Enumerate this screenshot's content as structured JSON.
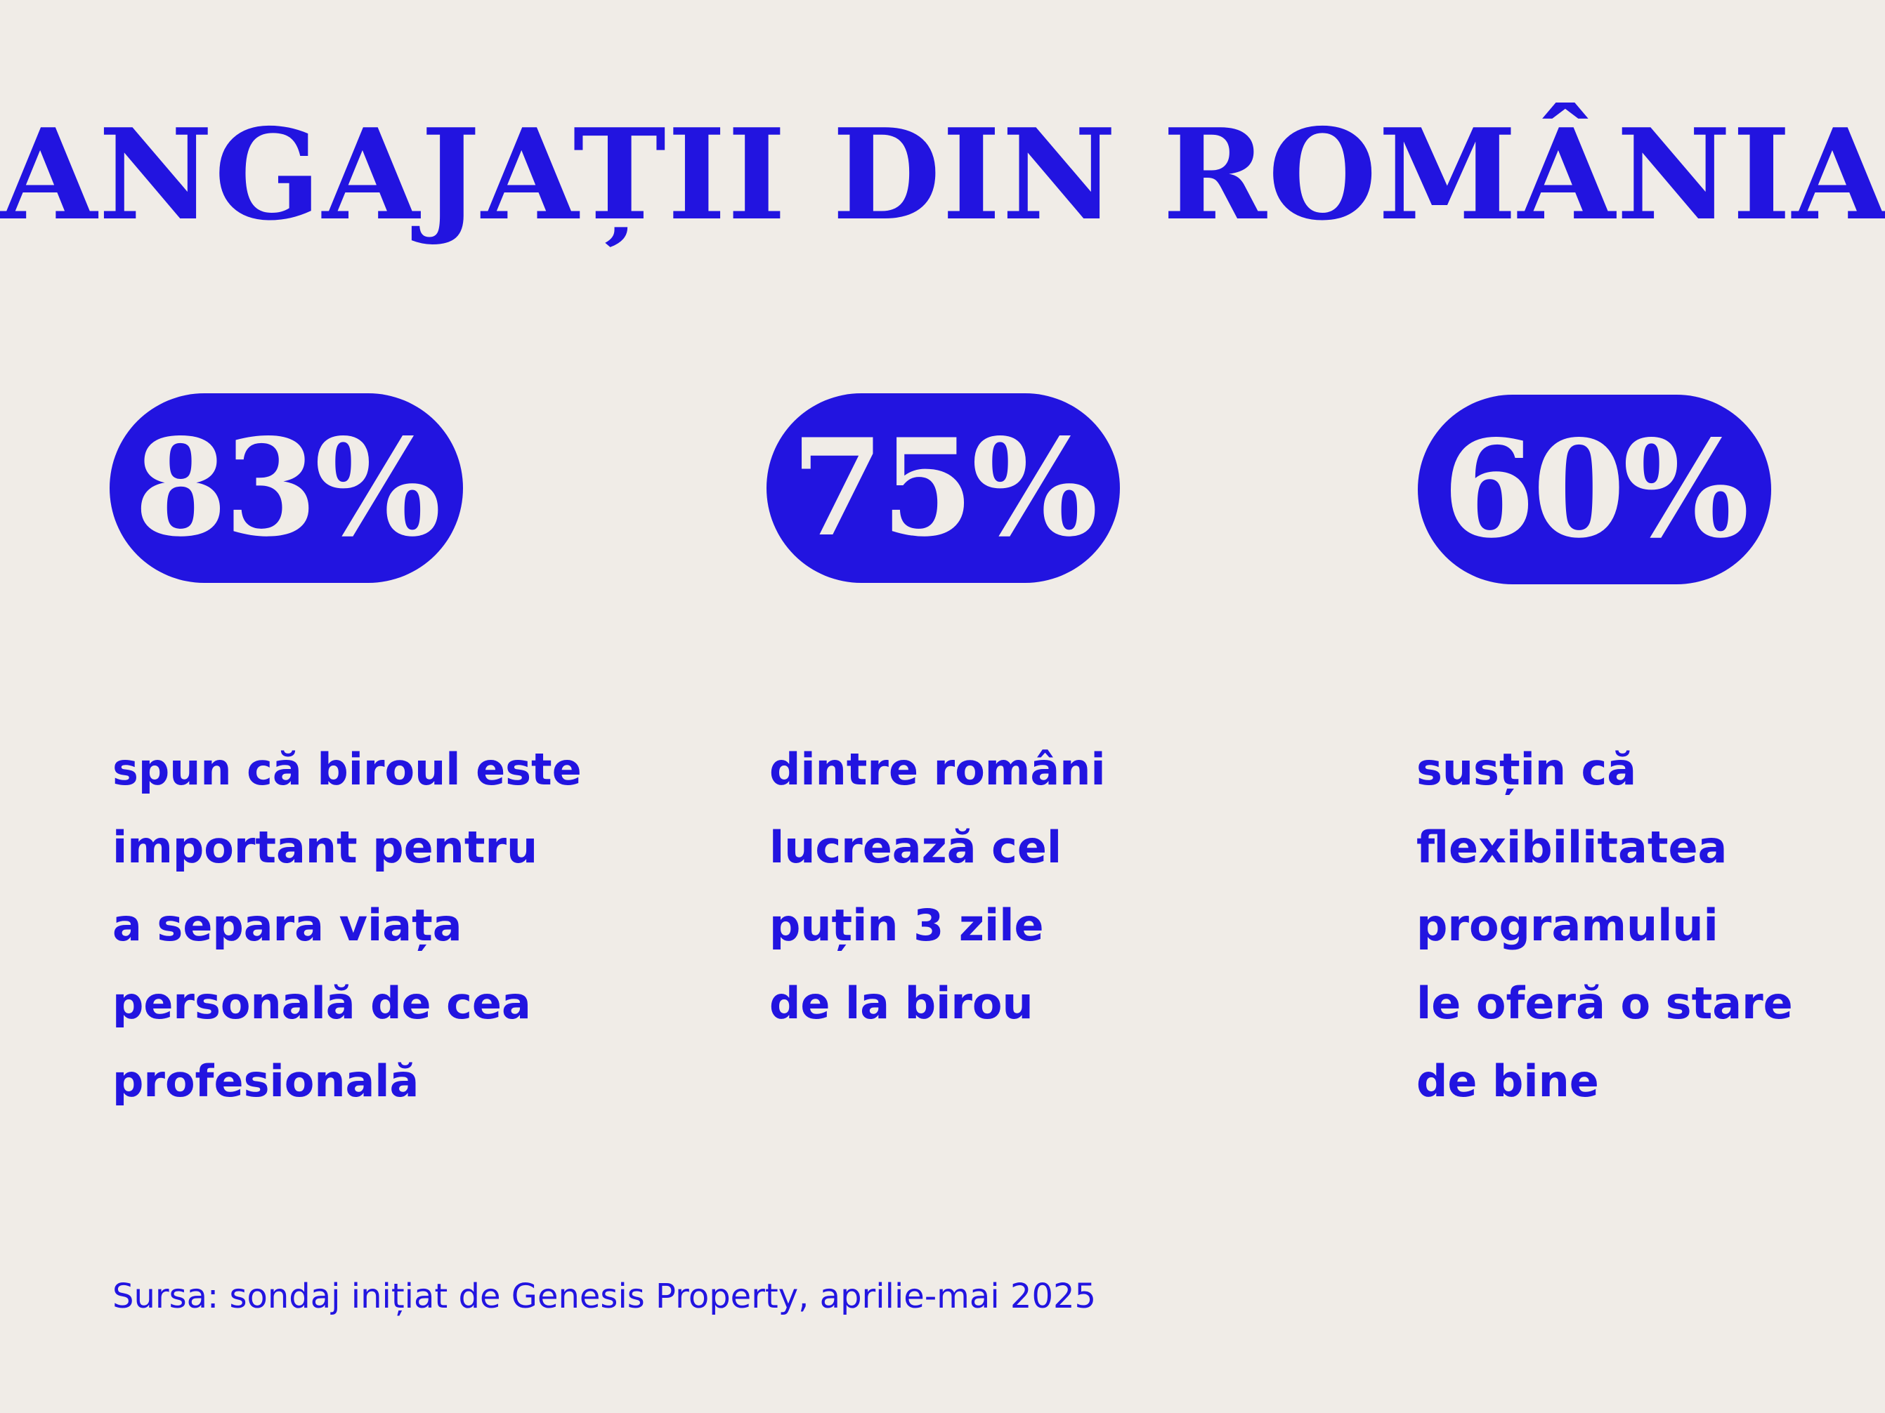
{
  "title": "ANGAJAȚII DIN ROMÂNIA",
  "stats": [
    {
      "value": "83%",
      "lines": [
        "spun că biroul este",
        "important pentru",
        "a separa viața",
        "personală de cea",
        "profesională"
      ]
    },
    {
      "value": "75%",
      "lines": [
        "dintre români",
        "lucrează cel",
        "puțin 3 zile",
        "de la birou"
      ]
    },
    {
      "value": "60%",
      "lines": [
        "susțin că",
        "flexibilitatea",
        "programului",
        "le oferă o stare",
        "de bine"
      ]
    }
  ],
  "source": "Sursa: sondaj inițiat de Genesis Property, aprilie-mai 2025",
  "colors": {
    "accent": "#2214e0",
    "background": "#f0ece7"
  }
}
